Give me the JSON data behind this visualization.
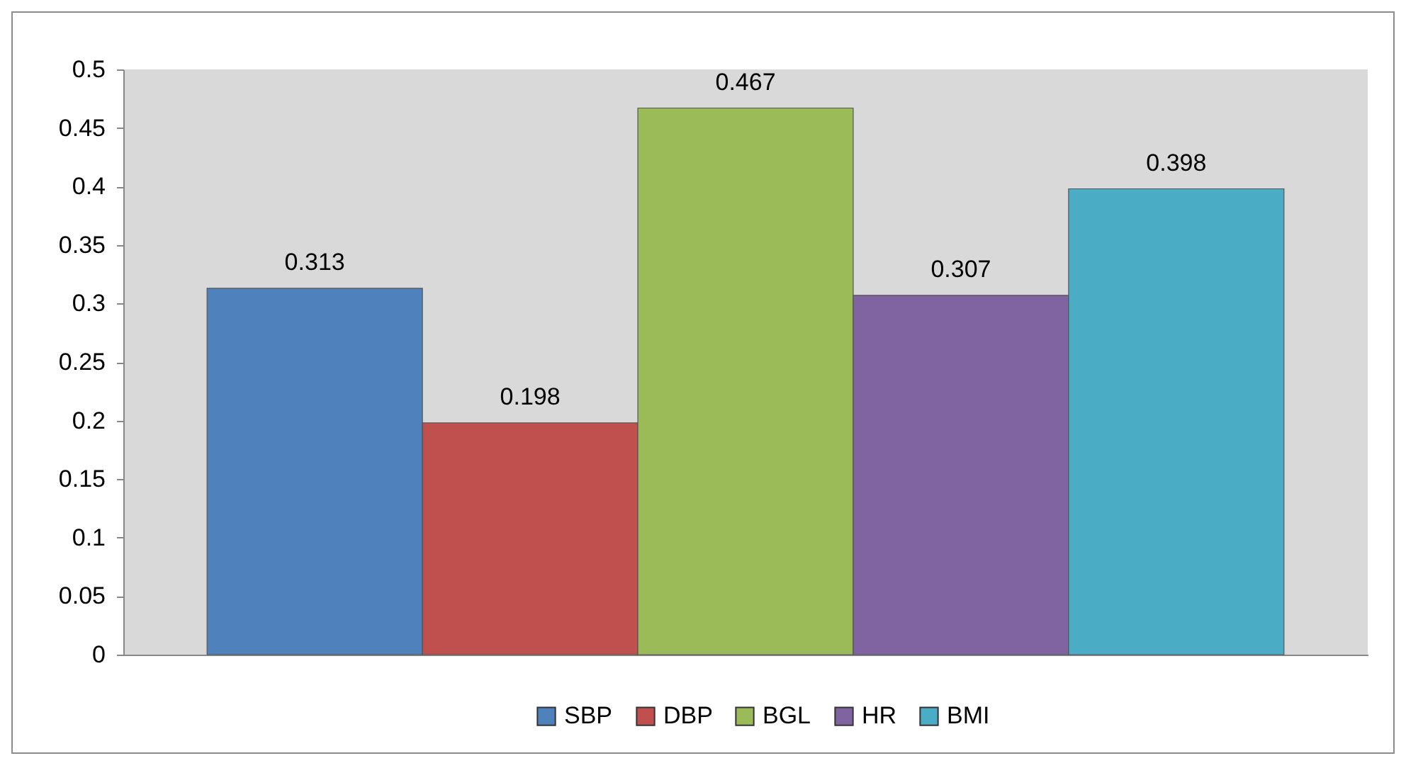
{
  "chart_data": {
    "type": "bar",
    "categories": [
      null
    ],
    "series": [
      {
        "name": "SBP",
        "color": "#4f81bd",
        "values": [
          0.313
        ]
      },
      {
        "name": "DBP",
        "color": "#c0504d",
        "values": [
          0.198
        ]
      },
      {
        "name": "BGL",
        "color": "#9bbb59",
        "values": [
          0.467
        ]
      },
      {
        "name": "HR",
        "color": "#8064a2",
        "values": [
          0.307
        ]
      },
      {
        "name": "BMI",
        "color": "#4bacc6",
        "values": [
          0.398
        ]
      }
    ],
    "ylim": [
      0,
      0.5
    ],
    "yticks": [
      0,
      0.05,
      0.1,
      0.15,
      0.2,
      0.25,
      0.3,
      0.35,
      0.4,
      0.45,
      0.5
    ],
    "grid": false,
    "legend": "bottom",
    "data_labels": true
  }
}
